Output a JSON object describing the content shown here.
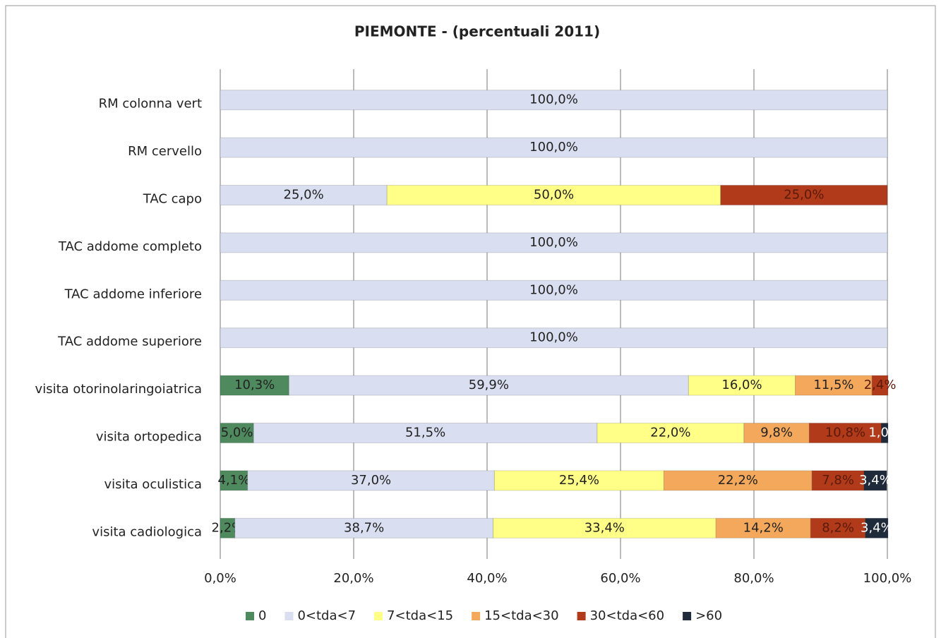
{
  "chart_data": {
    "type": "stacked-bar-horizontal",
    "title": "PIEMONTE -  (percentuali 2011)",
    "categories": [
      "RM colonna vert",
      "RM cervello",
      "TAC capo",
      "TAC addome completo",
      "TAC addome inferiore",
      "TAC addome superiore",
      "visita otorinolaringoiatrica",
      "visita ortopedica",
      "visita oculistica",
      "visita cadiologica"
    ],
    "series": [
      {
        "name": "0",
        "color": "#4e8a5e",
        "values": [
          null,
          null,
          null,
          null,
          null,
          null,
          10.3,
          5.0,
          4.1,
          2.2
        ],
        "value_labels": [
          null,
          null,
          null,
          null,
          null,
          null,
          "10,3%",
          "5,0%",
          "4,1%",
          "2,2%"
        ]
      },
      {
        "name": "0<tda<7",
        "color": "#d9dff0",
        "values": [
          100,
          100,
          25,
          100,
          100,
          100,
          59.9,
          51.5,
          37.0,
          38.7
        ],
        "value_labels": [
          "100,0%",
          "100,0%",
          "25,0%",
          "100,0%",
          "100,0%",
          "100,0%",
          "59,9%",
          "51,5%",
          "37,0%",
          "38,7%"
        ]
      },
      {
        "name": "7<tda<15",
        "color": "#ffff88",
        "values": [
          null,
          null,
          50,
          null,
          null,
          null,
          16.0,
          22.0,
          25.4,
          33.4
        ],
        "value_labels": [
          null,
          null,
          "50,0%",
          null,
          null,
          null,
          "16,0%",
          "22,0%",
          "25,4%",
          "33,4%"
        ]
      },
      {
        "name": "15<tda<30",
        "color": "#f4a85c",
        "values": [
          null,
          null,
          null,
          null,
          null,
          null,
          11.5,
          9.8,
          22.2,
          14.2
        ],
        "value_labels": [
          null,
          null,
          null,
          null,
          null,
          null,
          "11,5%",
          "9,8%",
          "22,2%",
          "14,2%"
        ]
      },
      {
        "name": "30<tda<60",
        "color": "#b03a1a",
        "values": [
          null,
          null,
          25,
          null,
          null,
          null,
          2.4,
          10.8,
          7.8,
          8.2
        ],
        "value_labels": [
          null,
          null,
          "25,0%",
          null,
          null,
          null,
          "2,4%",
          "10,8%",
          "7,8%",
          "8,2%"
        ]
      },
      {
        "name": ">60",
        "color": "#1f2a3a",
        "values": [
          null,
          null,
          null,
          null,
          null,
          null,
          null,
          1.0,
          3.4,
          3.4
        ],
        "value_labels": [
          null,
          null,
          null,
          null,
          null,
          null,
          null,
          "1,0%",
          "3,4%",
          "3,4%"
        ]
      }
    ],
    "xlim": [
      0,
      100
    ],
    "xticks": [
      {
        "value": 0,
        "label": "0,0%"
      },
      {
        "value": 20,
        "label": "20,0%"
      },
      {
        "value": 40,
        "label": "40,0%"
      },
      {
        "value": 60,
        "label": "60,0%"
      },
      {
        "value": 80,
        "label": "80,0%"
      },
      {
        "value": 100,
        "label": "100,0%"
      }
    ],
    "grid": true,
    "legend": "bottom"
  }
}
